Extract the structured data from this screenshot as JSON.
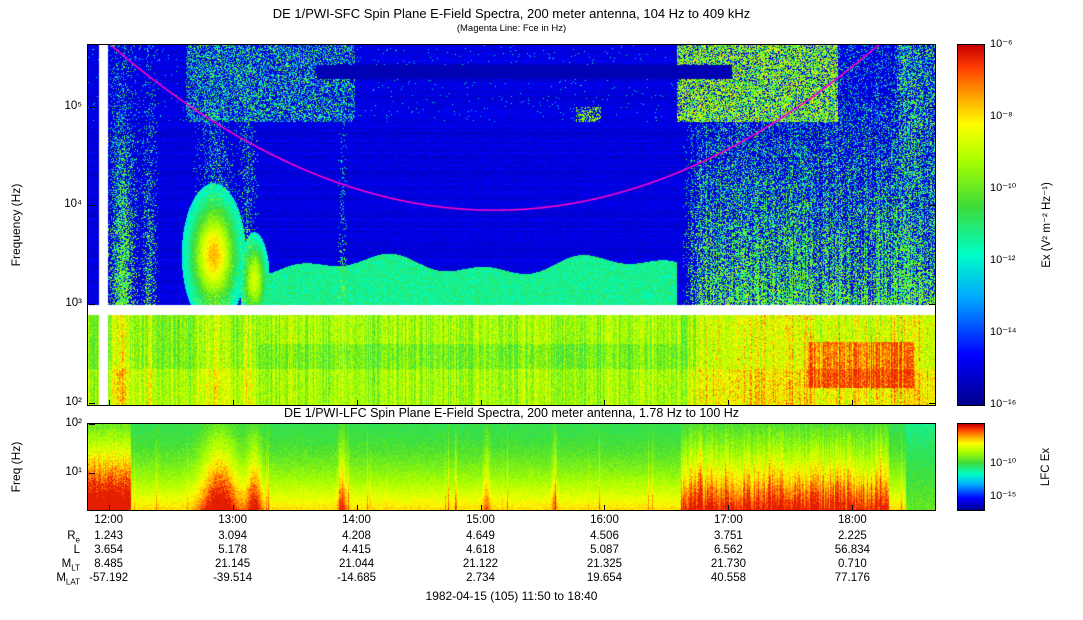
{
  "chart_data": [
    {
      "type": "heatmap",
      "title": "DE 1/PWI-SFC  Spin Plane E-Field Spectra, 200 meter antenna, 104 Hz to 409 kHz",
      "subtitle": "(Magenta Line: Fce in Hz)",
      "ylabel": "Frequency (Hz)",
      "y_scale": "log",
      "y_range_hz": [
        104,
        409000
      ],
      "y_tick_labels": [
        "10⁵",
        "10⁴",
        "10³",
        "10²"
      ],
      "y_tick_values": [
        100000,
        10000,
        1000,
        100
      ],
      "x_range": [
        "11:50",
        "18:40"
      ],
      "x_tick_labels": [
        "12:00",
        "13:00",
        "14:00",
        "15:00",
        "16:00",
        "17:00",
        "18:00"
      ],
      "colorbar": {
        "label": "Ex (V² m⁻² Hz⁻¹)",
        "scale": "log",
        "tick_labels": [
          "10⁻⁶",
          "10⁻⁸",
          "10⁻¹⁰",
          "10⁻¹²",
          "10⁻¹⁴",
          "10⁻¹⁶"
        ],
        "top": "10⁻⁶",
        "bottom": "10⁻¹⁶"
      },
      "overlay_line": {
        "name": "Fce (electron cyclotron frequency)",
        "color": "#ff00cc",
        "x_hours": [
          12.5,
          13.0,
          13.5,
          14.0,
          14.5,
          15.0,
          15.5,
          16.0,
          16.5,
          17.0,
          17.5,
          18.0
        ],
        "f_hz": [
          138000,
          54000,
          25000,
          14700,
          10400,
          8900,
          9500,
          12300,
          19400,
          37000,
          88000,
          253000
        ]
      },
      "features": [
        "white horizontal data gap near 1 kHz across entire interval",
        "white vertical data gap just before 12:00",
        "broadband green emission below 1 kHz for whole pass",
        "green band 1-3 kHz from about 13:10 to 16:30",
        "intense vertical broadband bursts 11:55-12:20, near 13:00, and 16:45-18:30",
        "auroral kilometric radiation patches above ~70 kHz near 12:45-13:45 and 16:50-17:50",
        "dark quiet band near 200-260 kHz from about 13:40 to 16:55",
        "magenta Fce line dips to about 9 kHz near 15:00 and exits the top of the panel at both ends"
      ]
    },
    {
      "type": "heatmap",
      "title": "DE 1/PWI-LFC  Spin Plane E-Field Spectra, 200 meter antenna, 1.78 Hz to 100 Hz",
      "ylabel": "Freq (Hz)",
      "y_scale": "log",
      "y_range_hz": [
        1.78,
        100
      ],
      "y_tick_labels": [
        "10²",
        "10¹"
      ],
      "y_tick_values": [
        100,
        10
      ],
      "x_range": [
        "11:50",
        "18:40"
      ],
      "x_tick_labels": [
        "12:00",
        "13:00",
        "14:00",
        "15:00",
        "16:00",
        "17:00",
        "18:00"
      ],
      "colorbar": {
        "label": "LFC Ex",
        "scale": "log",
        "tick_labels": [
          "10⁻¹⁰",
          "10⁻¹⁵"
        ]
      },
      "features": [
        "broad green background at all frequencies",
        "red-orange intensification below ~5 Hz throughout",
        "strong red vertical bursts 11:50-12:15, ~13:00-13:20, and 16:40-18:10",
        "quieter cyan-green interval after about 18:20"
      ]
    }
  ],
  "ephemeris": {
    "rows": [
      {
        "label_main": "R",
        "label_sub": "e",
        "values": [
          "1.243",
          "3.094",
          "4.208",
          "4.649",
          "4.506",
          "3.751",
          "2.225"
        ]
      },
      {
        "label_main": "L",
        "label_sub": "",
        "values": [
          "3.654",
          "5.178",
          "4.415",
          "4.618",
          "5.087",
          "6.562",
          "56.834"
        ]
      },
      {
        "label_main": "M",
        "label_sub": "LT",
        "values": [
          "8.485",
          "21.145",
          "21.044",
          "21.122",
          "21.325",
          "21.730",
          "0.710"
        ]
      },
      {
        "label_main": "M",
        "label_sub": "LAT",
        "values": [
          "-57.192",
          "-39.514",
          "-14.685",
          "2.734",
          "19.654",
          "40.558",
          "77.176"
        ]
      }
    ]
  },
  "footer": "1982-04-15 (105) 11:50 to 18:40"
}
